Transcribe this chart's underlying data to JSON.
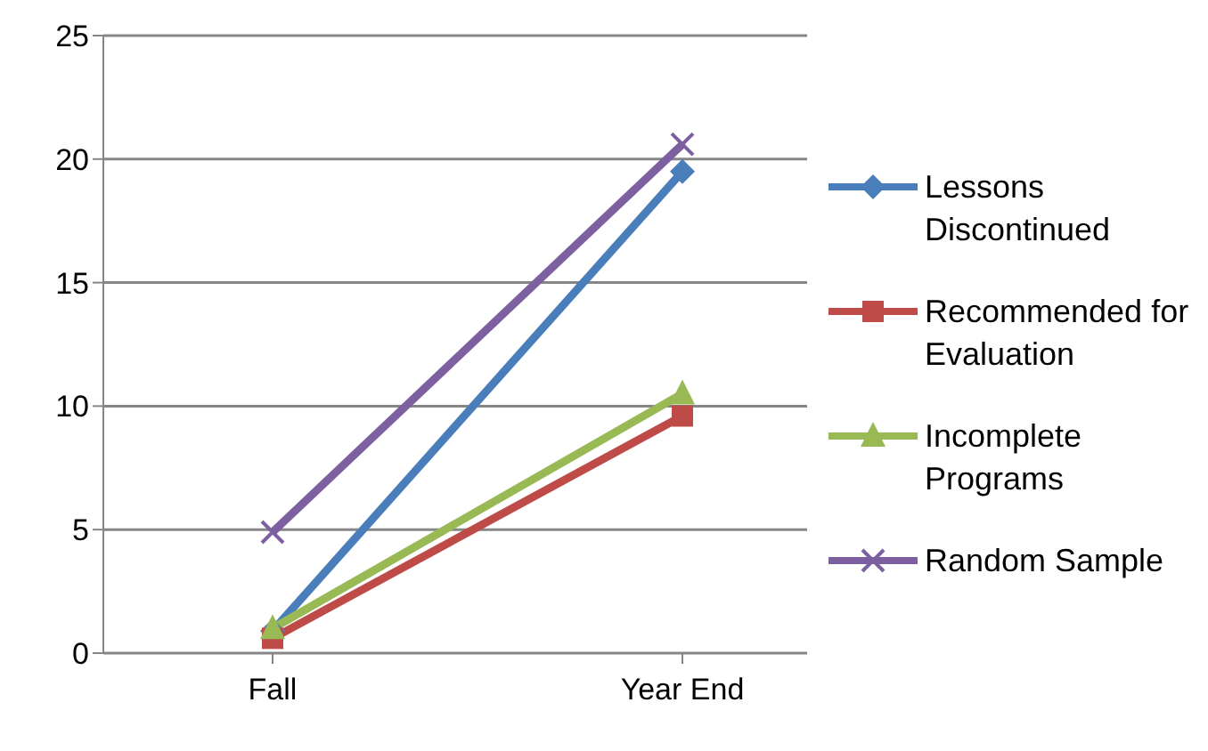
{
  "chart_data": {
    "type": "line",
    "categories": [
      "Fall",
      "Year End"
    ],
    "series": [
      {
        "name": "Lessons Discontinued",
        "color": "#4a7ebb",
        "values": [
          0.9,
          19.5
        ],
        "marker": "diamond"
      },
      {
        "name": "Recommended for Evaluation",
        "color": "#be4b48",
        "values": [
          0.6,
          9.6
        ],
        "marker": "square"
      },
      {
        "name": "Incomplete Programs",
        "color": "#98b954",
        "values": [
          1.0,
          10.5
        ],
        "marker": "triangle"
      },
      {
        "name": "Random Sample",
        "color": "#7d60a0",
        "values": [
          4.9,
          20.6
        ],
        "marker": "cross"
      }
    ],
    "ylim": [
      0,
      25
    ],
    "yticks": [
      0,
      5,
      10,
      15,
      20,
      25
    ],
    "grid": "y",
    "legend": "right",
    "line_style": "solid"
  }
}
